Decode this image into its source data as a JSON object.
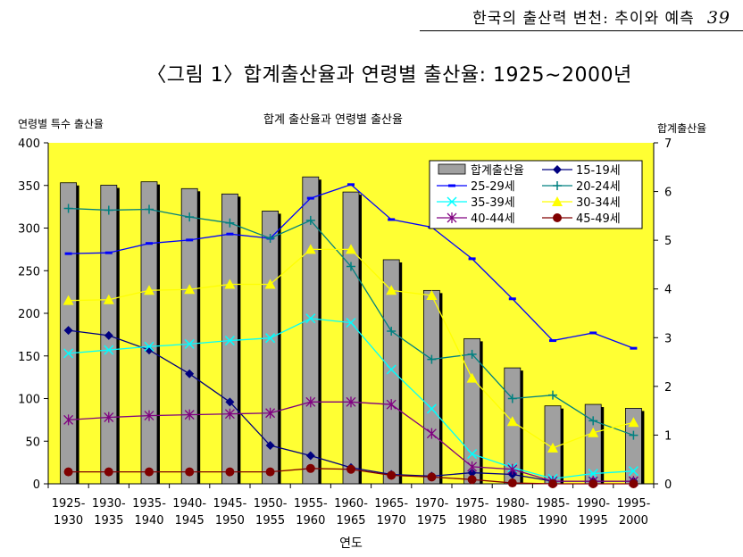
{
  "page_header": {
    "running_title": "한국의 출산력 변천: 추이와 예측",
    "page_number": "39"
  },
  "figure_title": "〈그림 1〉합계출산율과 연령별 출산율: 1925∼2000년",
  "chart_data": {
    "type": "bar+line",
    "title": "합계 출산율과 연령별 출산율",
    "xlabel": "연도",
    "ylabel_left": "연령별 특수 출산율",
    "ylabel_right": "합계출산율",
    "ylim_left": [
      0,
      400
    ],
    "ylim_right": [
      0,
      7
    ],
    "left_ticks": [
      "0",
      "50",
      "100",
      "150",
      "200",
      "250",
      "300",
      "350",
      "400"
    ],
    "right_ticks": [
      "0",
      "1",
      "2",
      "3",
      "4",
      "5",
      "6",
      "7"
    ],
    "grid": false,
    "legend_position": "top-right",
    "categories": [
      [
        "1925-",
        "1930"
      ],
      [
        "1930-",
        "1935"
      ],
      [
        "1935-",
        "1940"
      ],
      [
        "1940-",
        "1945"
      ],
      [
        "1945-",
        "1950"
      ],
      [
        "1950-",
        "1955"
      ],
      [
        "1955-",
        "1960"
      ],
      [
        "1960-",
        "1965"
      ],
      [
        "1965-",
        "1970"
      ],
      [
        "1970-",
        "1975"
      ],
      [
        "1975-",
        "1980"
      ],
      [
        "1980-",
        "1985"
      ],
      [
        "1985-",
        "1990"
      ],
      [
        "1990-",
        "1995"
      ],
      [
        "1995-",
        "2000"
      ]
    ],
    "bar_series": {
      "name": "합계출산율",
      "axis": "right",
      "color": "#a0a0a0",
      "values": [
        6.18,
        6.13,
        6.2,
        6.06,
        5.95,
        5.6,
        6.3,
        5.99,
        4.6,
        3.97,
        2.98,
        2.38,
        1.6,
        1.63,
        1.55
      ]
    },
    "line_series": [
      {
        "name": "15-19세",
        "color": "#000080",
        "marker": "diamond",
        "values": [
          180,
          174,
          157,
          129,
          96,
          45,
          33,
          19,
          11,
          9,
          13,
          11,
          3,
          3,
          3
        ]
      },
      {
        "name": "25-29세",
        "color": "#0000ff",
        "marker": "dash",
        "values": [
          270,
          271,
          282,
          286,
          293,
          288,
          335,
          351,
          310,
          301,
          264,
          217,
          168,
          177,
          159
        ]
      },
      {
        "name": "20-24세",
        "color": "#008080",
        "marker": "plus",
        "values": [
          323,
          321,
          322,
          313,
          306,
          288,
          309,
          255,
          179,
          146,
          152,
          100,
          104,
          74,
          57
        ]
      },
      {
        "name": "35-39세",
        "color": "#00ffff",
        "marker": "x",
        "values": [
          153,
          157,
          161,
          164,
          168,
          171,
          194,
          189,
          134,
          88,
          35,
          19,
          6,
          12,
          15
        ]
      },
      {
        "name": "30-34세",
        "color": "#ffff00",
        "marker": "triangle",
        "values": [
          215,
          216,
          227,
          228,
          234,
          234,
          275,
          275,
          227,
          221,
          124,
          73,
          42,
          60,
          72
        ]
      },
      {
        "name": "40-44세",
        "color": "#800080",
        "marker": "asterisk",
        "values": [
          75,
          78,
          80,
          81,
          82,
          83,
          96,
          96,
          93,
          59,
          20,
          17,
          3,
          3,
          3
        ]
      },
      {
        "name": "45-49세",
        "color": "#800000",
        "marker": "circle",
        "values": [
          14,
          14,
          14,
          14,
          14,
          14,
          18,
          17,
          10,
          8,
          5,
          1,
          0,
          0,
          0
        ]
      }
    ]
  }
}
